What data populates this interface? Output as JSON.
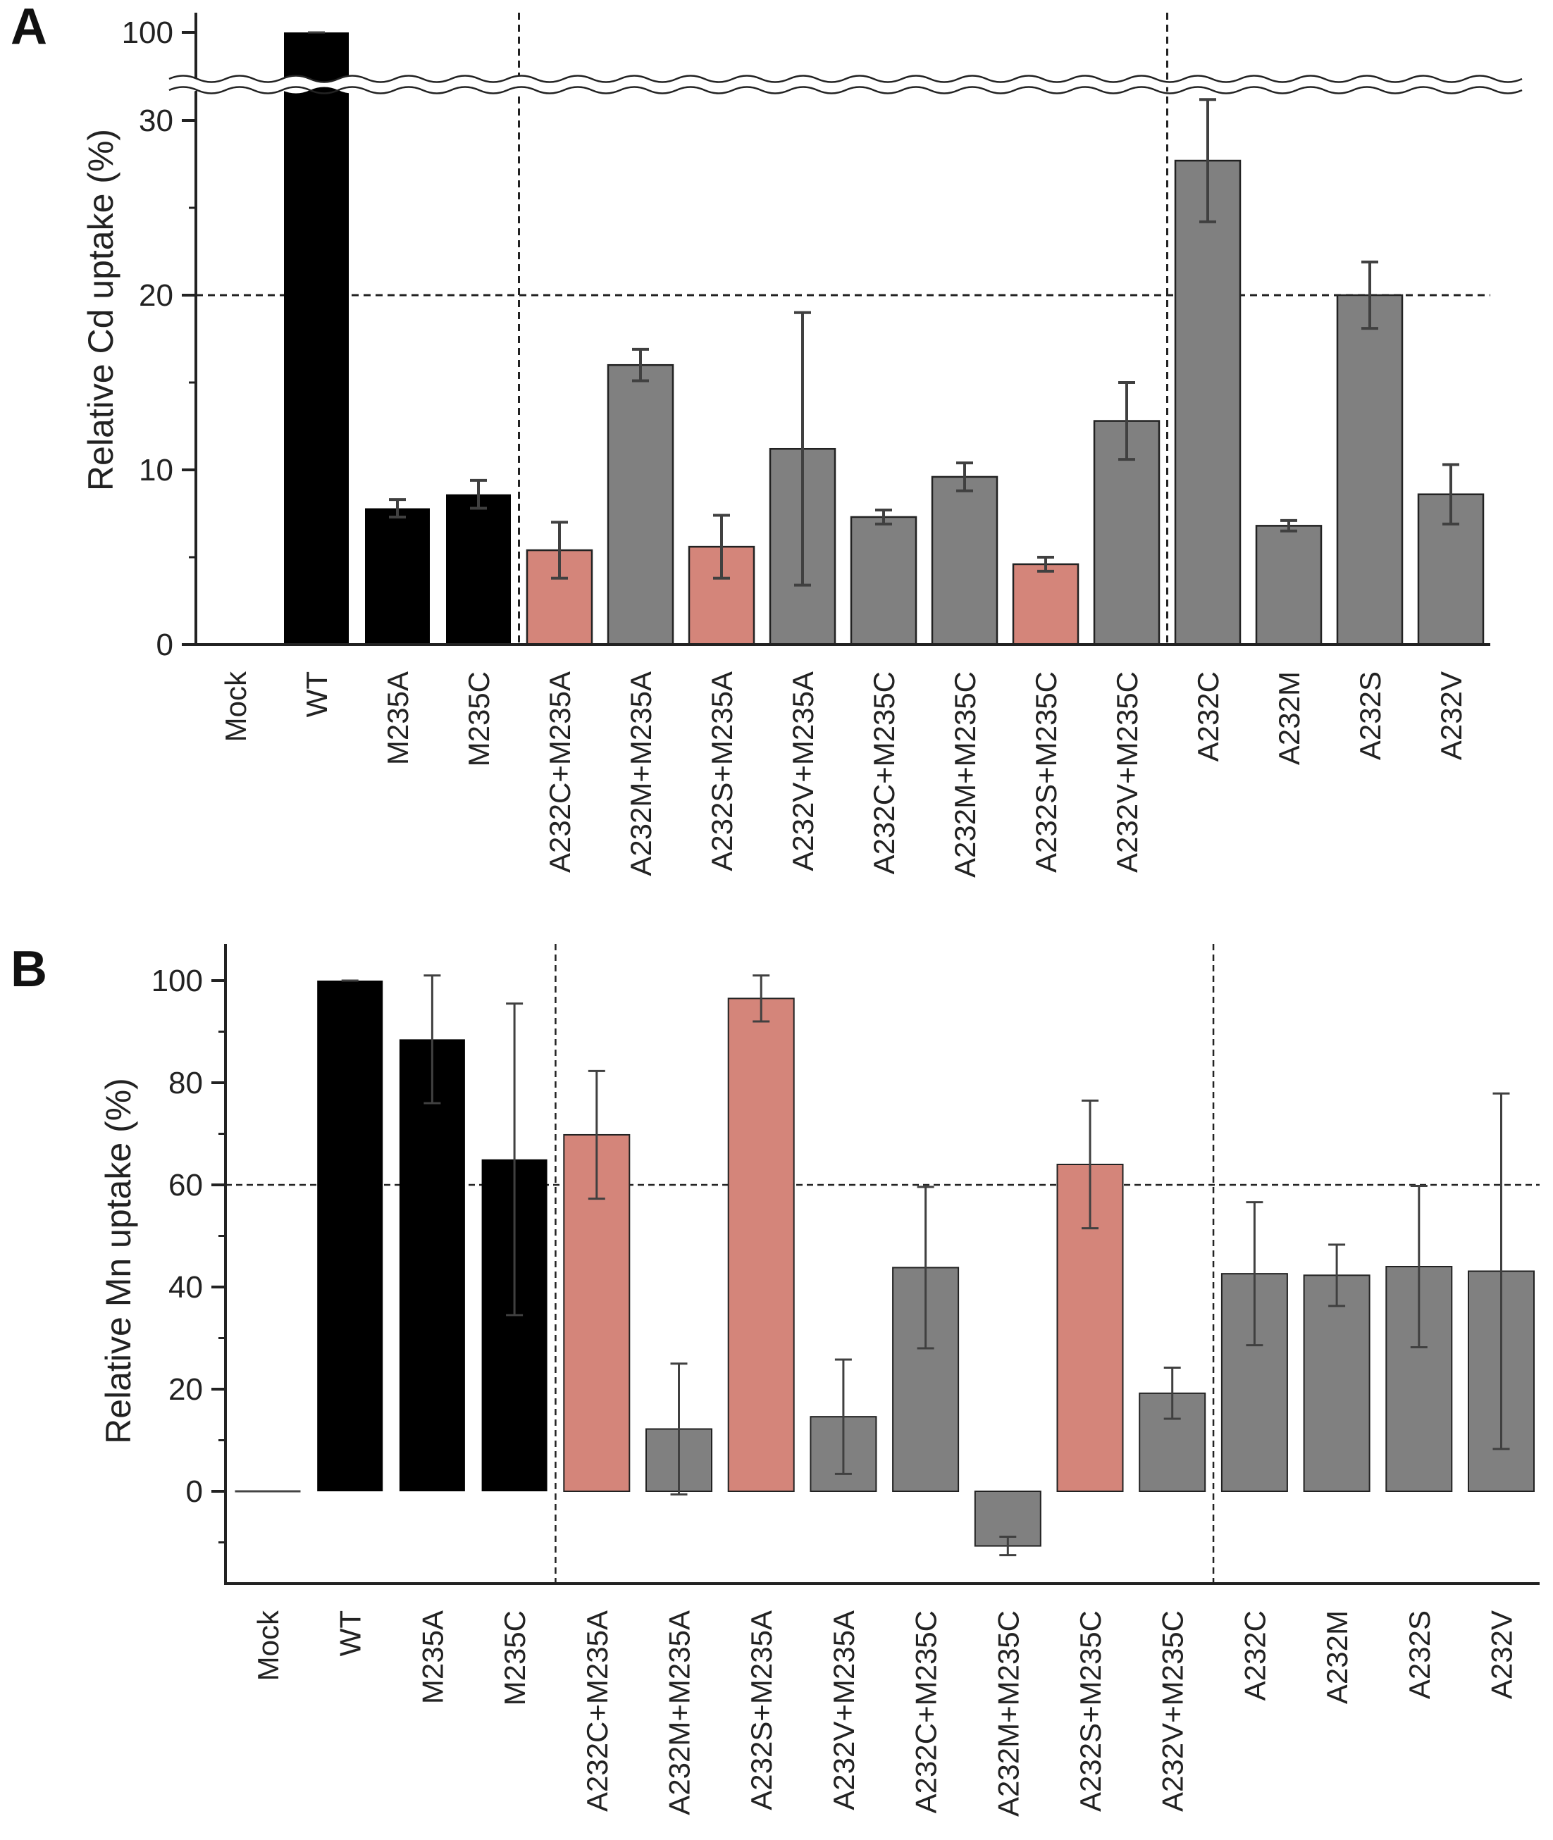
{
  "colors": {
    "black": "#000000",
    "gray": "#808080",
    "salmon": "#d4857a",
    "errorbar": "#404040",
    "axis": "#222222"
  },
  "chart_data": [
    {
      "panel": "A",
      "type": "bar",
      "ylabel": "Relative Cd uptake (%)",
      "xlabel": "",
      "ylim": [
        0,
        32
      ],
      "axis_break": {
        "lower_max": 30,
        "upper_tick": 100
      },
      "yticks": [
        "0",
        "10",
        "20",
        "30",
        "100"
      ],
      "threshold": 20,
      "group_separators_after": [
        "M235C",
        "A232V+M235C"
      ],
      "categories": [
        "Mock",
        "WT",
        "M235A",
        "M235C",
        "A232C+M235A",
        "A232M+M235A",
        "A232S+M235A",
        "A232V+M235A",
        "A232C+M235C",
        "A232M+M235C",
        "A232S+M235C",
        "A232V+M235C",
        "A232C",
        "A232M",
        "A232S",
        "A232V"
      ],
      "values": [
        0,
        100,
        7.8,
        8.6,
        5.4,
        16.0,
        5.6,
        11.2,
        7.3,
        9.6,
        4.6,
        12.8,
        27.7,
        6.8,
        20.0,
        8.6
      ],
      "errors": [
        0,
        0,
        0.5,
        0.8,
        1.6,
        0.9,
        1.8,
        7.8,
        0.4,
        0.8,
        0.4,
        2.2,
        3.5,
        0.3,
        1.9,
        1.7
      ],
      "colors": [
        "black",
        "black",
        "black",
        "black",
        "salmon",
        "gray",
        "salmon",
        "gray",
        "gray",
        "gray",
        "salmon",
        "gray",
        "gray",
        "gray",
        "gray",
        "gray"
      ]
    },
    {
      "panel": "B",
      "type": "bar",
      "ylabel": "Relative Mn uptake (%)",
      "xlabel": "",
      "ylim": [
        -18,
        107
      ],
      "yticks": [
        "0",
        "20",
        "40",
        "60",
        "80",
        "100"
      ],
      "threshold": 60,
      "group_separators_after": [
        "M235C",
        "A232V+M235C"
      ],
      "categories": [
        "Mock",
        "WT",
        "M235A",
        "M235C",
        "A232C+M235A",
        "A232M+M235A",
        "A232S+M235A",
        "A232V+M235A",
        "A232C+M235C",
        "A232M+M235C",
        "A232S+M235C",
        "A232V+M235C",
        "A232C",
        "A232M",
        "A232S",
        "A232V"
      ],
      "values": [
        0,
        100,
        88.5,
        65.0,
        69.8,
        12.2,
        96.5,
        14.6,
        43.8,
        -10.7,
        64.0,
        19.2,
        42.6,
        42.3,
        44.0,
        43.1
      ],
      "errors": [
        0,
        0,
        12.5,
        30.5,
        12.5,
        12.8,
        4.5,
        11.2,
        15.8,
        1.8,
        12.5,
        5.0,
        14.0,
        6.0,
        15.8,
        34.8
      ],
      "colors": [
        "black",
        "black",
        "black",
        "black",
        "salmon",
        "gray",
        "salmon",
        "gray",
        "gray",
        "gray",
        "salmon",
        "gray",
        "gray",
        "gray",
        "gray",
        "gray"
      ]
    }
  ]
}
